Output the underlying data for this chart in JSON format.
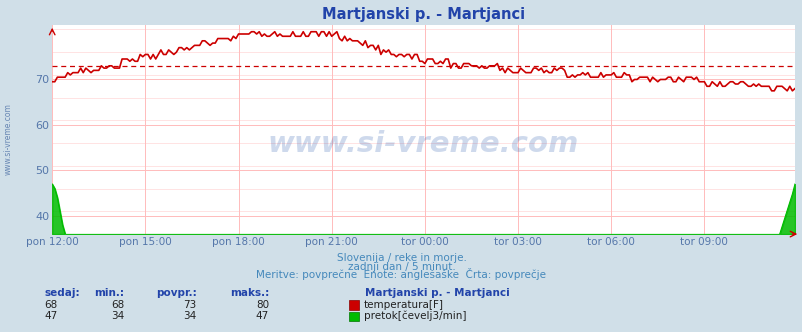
{
  "title": "Martjanski p. - Martjanci",
  "bg_color": "#d0dfe8",
  "plot_bg_color": "#ffffff",
  "grid_color_h": "#ffbbbb",
  "grid_color_v": "#ffbbbb",
  "grid_color_minor_h": "#ffd8d8",
  "xlabel_color": "#5577aa",
  "title_color": "#2244aa",
  "subtitle_lines": [
    "Slovenija / reke in morje.",
    "zadnji dan / 5 minut.",
    "Meritve: povprečne  Enote: anglešaške  Črta: povprečje"
  ],
  "subtitle_color": "#4488bb",
  "watermark": "www.si-vreme.com",
  "watermark_color": "#2255aa",
  "temp_color": "#cc0000",
  "flow_color": "#00bb00",
  "ylim": [
    36,
    82
  ],
  "yticks": [
    40,
    50,
    60,
    70
  ],
  "temp_avg": 73,
  "flow_avg": 34,
  "n_points": 288,
  "legend_title": "Martjanski p. - Martjanci",
  "legend_temp_label": "temperatura[F]",
  "legend_flow_label": "pretok[čevelj3/min]",
  "table_headers": [
    "sedaj:",
    "min.:",
    "povpr.:",
    "maks.:"
  ],
  "table_temp": [
    68,
    68,
    73,
    80
  ],
  "table_flow": [
    47,
    34,
    34,
    47
  ],
  "xtick_labels": [
    "pon 12:00",
    "pon 15:00",
    "pon 18:00",
    "pon 21:00",
    "tor 00:00",
    "tor 03:00",
    "tor 06:00",
    "tor 09:00"
  ],
  "xtick_positions": [
    0,
    36,
    72,
    108,
    144,
    180,
    216,
    252
  ]
}
